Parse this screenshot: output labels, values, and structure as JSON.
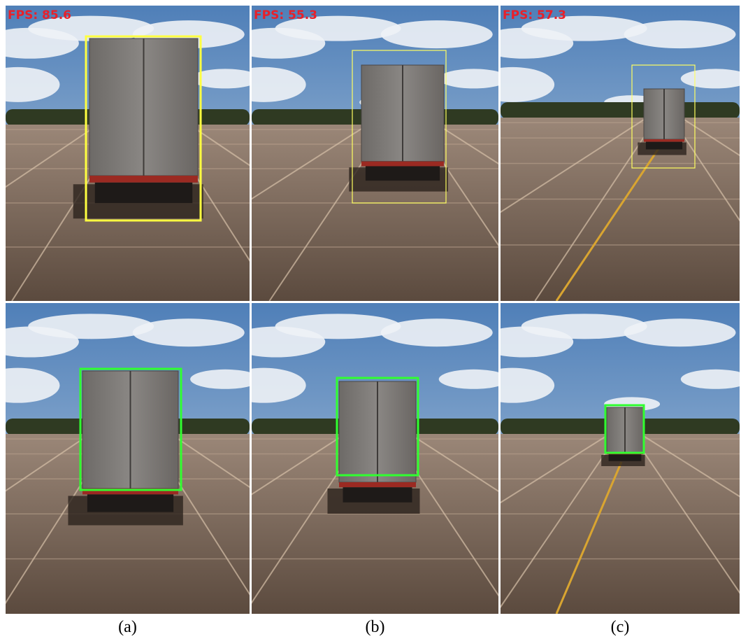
{
  "figure": {
    "fps_labels": [
      "FPS: 85.6",
      "FPS: 55.3",
      "FPS: 57.3"
    ],
    "captions": [
      "(a)",
      "(b)",
      "(c)"
    ]
  }
}
